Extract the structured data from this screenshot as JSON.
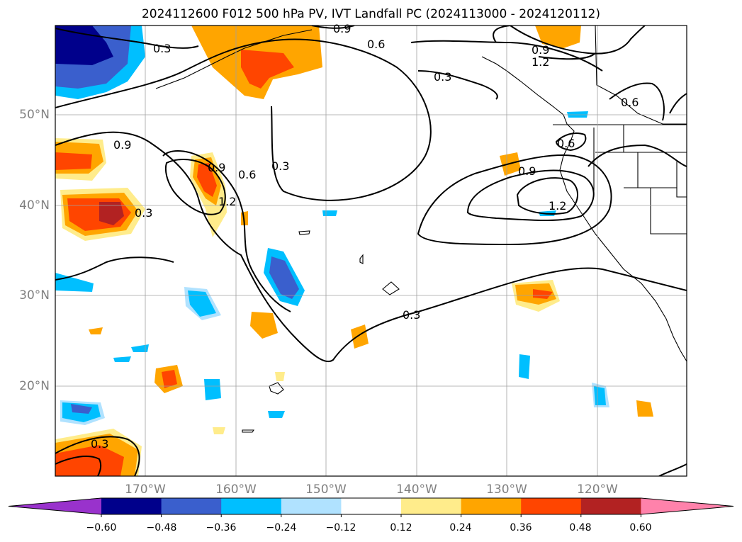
{
  "title": "2024112600 F012 500 hPa PV, IVT Landfall PC (2024113000 - 2024120112)",
  "axes": {
    "lat_labels": [
      "50°N",
      "40°N",
      "30°N",
      "20°N"
    ],
    "lon_labels": [
      "170°W",
      "160°W",
      "150°W",
      "140°W",
      "130°W",
      "120°W"
    ]
  },
  "contour_labels": [
    "0.3",
    "0.6",
    "0.9",
    "1.2",
    "0.9",
    "0.3",
    "0.6",
    "0.9",
    "1.2",
    "0.3",
    "0.9",
    "1.2",
    "0.9",
    "0.6",
    "0.3",
    "0.6",
    "0.3",
    "0.3"
  ],
  "colorbar": {
    "ticks": [
      "−0.60",
      "−0.48",
      "−0.36",
      "−0.24",
      "−0.12",
      "0.12",
      "0.24",
      "0.36",
      "0.48",
      "0.60"
    ],
    "colors": [
      "#9932cc",
      "#00008b",
      "#3a5fcd",
      "#00bfff",
      "#b0e2ff",
      "#ffffff",
      "#ffec8b",
      "#ffa500",
      "#ff4500",
      "#b22222",
      "#ff82ab"
    ]
  }
}
